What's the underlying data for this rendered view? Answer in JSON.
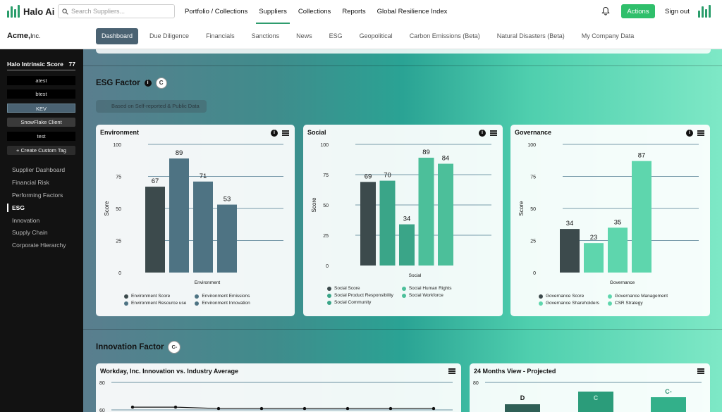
{
  "brand": {
    "name": "Halo Ai"
  },
  "search": {
    "placeholder": "Search Suppliers..."
  },
  "nav": [
    {
      "label": "Portfolio / Collections",
      "active": false
    },
    {
      "label": "Suppliers",
      "active": true
    },
    {
      "label": "Collections",
      "active": false
    },
    {
      "label": "Reports",
      "active": false
    },
    {
      "label": "Global Resilience Index",
      "active": false
    }
  ],
  "header": {
    "actions_label": "Actions",
    "signout_label": "Sign out"
  },
  "company": {
    "name": "Acme,",
    "suffix": "Inc."
  },
  "tabs": [
    {
      "label": "Dashboard",
      "active": true
    },
    {
      "label": "Due Diligence"
    },
    {
      "label": "Financials"
    },
    {
      "label": "Sanctions"
    },
    {
      "label": "News"
    },
    {
      "label": "ESG"
    },
    {
      "label": "Geopolitical"
    },
    {
      "label": "Carbon Emissions (Beta)"
    },
    {
      "label": "Natural Disasters (Beta)"
    },
    {
      "label": "My Company Data"
    }
  ],
  "sidebar": {
    "score_label": "Halo Intrinsic Score",
    "score_value": "77",
    "tags": [
      "atest",
      "btest",
      "KEV",
      "SnowFlake Client",
      "test"
    ],
    "create_tag": "+ Create Custom Tag",
    "links": [
      "Supplier Dashboard",
      "Financial Risk",
      "Performing Factors",
      "ESG",
      "Innovation",
      "Supply Chain",
      "Corporate Hierarchy"
    ],
    "active_link": "ESG"
  },
  "esg": {
    "title": "ESG Factor",
    "grade": "C",
    "note": "Based on Self-reported & Public Data"
  },
  "innovation": {
    "title": "Innovation Factor",
    "grade": "C-"
  },
  "colors": {
    "dark": "#3c4a4c",
    "slate": "#4e7383",
    "green1": "#3aa588",
    "green2": "#4cbf9a",
    "green3": "#5ed6ad"
  },
  "chart_data": [
    {
      "type": "bar",
      "title": "Environment",
      "xlabel": "Environment",
      "ylabel": "Score",
      "ylim": [
        0,
        100
      ],
      "yticks": [
        0,
        25,
        50,
        75,
        100
      ],
      "series": [
        {
          "name": "Environment Score",
          "value": 67,
          "color": "#3c4a4c"
        },
        {
          "name": "Environment Emissions",
          "value": 89,
          "color": "#4e7383"
        },
        {
          "name": "Environment Resource use",
          "value": 71,
          "color": "#4e7383"
        },
        {
          "name": "Environment Innovation",
          "value": 53,
          "color": "#4e7383"
        }
      ],
      "legend_order": [
        "Environment Score",
        "Environment Emissions",
        "Environment Resource use",
        "Environment Innovation"
      ]
    },
    {
      "type": "bar",
      "title": "Social",
      "xlabel": "Social",
      "ylabel": "Score",
      "ylim": [
        0,
        100
      ],
      "yticks": [
        0,
        25,
        50,
        75,
        100
      ],
      "series": [
        {
          "name": "Social Score",
          "value": 69,
          "color": "#3c4a4c"
        },
        {
          "name": "Social Product Responsibility",
          "value": 70,
          "color": "#3aa588"
        },
        {
          "name": "Social Community",
          "value": 34,
          "color": "#3aa588"
        },
        {
          "name": "Social Human Rights",
          "value": 89,
          "color": "#4cbf9a"
        },
        {
          "name": "Social Workforce",
          "value": 84,
          "color": "#4cbf9a"
        }
      ],
      "legend_order": [
        "Social Score",
        "Social Human Rights",
        "Social Product Responsibility",
        "Social Workforce",
        "Social Community"
      ]
    },
    {
      "type": "bar",
      "title": "Governance",
      "xlabel": "Governance",
      "ylabel": "Score",
      "ylim": [
        0,
        100
      ],
      "yticks": [
        0,
        25,
        50,
        75,
        100
      ],
      "series": [
        {
          "name": "Governance Score",
          "value": 34,
          "color": "#3c4a4c"
        },
        {
          "name": "Governance Shareholders",
          "value": 23,
          "color": "#5ed6ad"
        },
        {
          "name": "Governance Management",
          "value": 35,
          "color": "#5ed6ad"
        },
        {
          "name": "CSR Strategy",
          "value": 87,
          "color": "#5ed6ad"
        }
      ],
      "legend_order": [
        "Governance Score",
        "Governance Management",
        "Governance Shareholders",
        "CSR Strategy"
      ]
    },
    {
      "type": "line",
      "title": "Workday, Inc. Innovation vs. Industry Average",
      "yticks": [
        60,
        80
      ],
      "values": [
        62,
        62,
        61,
        61,
        61,
        61,
        61,
        61
      ]
    },
    {
      "type": "bar",
      "title": "24 Months View - Projected",
      "yticks": [
        80
      ],
      "categories": [
        "D",
        "C",
        "C-"
      ]
    }
  ]
}
